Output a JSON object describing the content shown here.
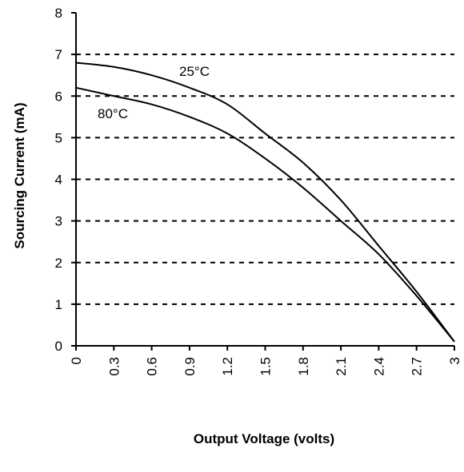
{
  "chart_data": {
    "type": "line",
    "title": "",
    "xlabel": "Output Voltage  (volts)",
    "ylabel": "Sourcing Current (mA)",
    "xlim": [
      0,
      3
    ],
    "ylim": [
      0,
      8
    ],
    "x_ticks": [
      "0",
      "0.3",
      "0.6",
      "0.9",
      "1.2",
      "1.5",
      "1.8",
      "2.1",
      "2.4",
      "2.7",
      "3"
    ],
    "y_ticks": [
      "0",
      "1",
      "2",
      "3",
      "4",
      "5",
      "6",
      "7",
      "8"
    ],
    "grid": "horizontal dashed",
    "series": [
      {
        "name": "25°C",
        "x": [
          0,
          0.3,
          0.6,
          0.9,
          1.2,
          1.5,
          1.8,
          2.1,
          2.4,
          2.7,
          3.0
        ],
        "y": [
          6.8,
          6.7,
          6.5,
          6.2,
          5.8,
          5.1,
          4.4,
          3.5,
          2.4,
          1.3,
          0.1
        ]
      },
      {
        "name": "80°C",
        "x": [
          0,
          0.3,
          0.6,
          0.9,
          1.2,
          1.5,
          1.8,
          2.1,
          2.4,
          2.7,
          3.0
        ],
        "y": [
          6.2,
          6.0,
          5.8,
          5.5,
          5.1,
          4.5,
          3.8,
          3.0,
          2.2,
          1.2,
          0.1
        ]
      }
    ]
  }
}
